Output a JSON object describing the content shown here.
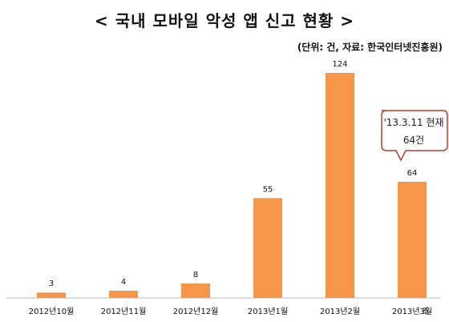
{
  "chart_data": {
    "type": "bar",
    "title": "< 국내 모바일 악성 앱 신고 현황 >",
    "subtitle": "(단위: 건, 자료: 한국인터넷진흥원)",
    "categories": [
      "2012년10월",
      "2012년11월",
      "2012년12월",
      "2013년1월",
      "2013년2월",
      "2013년3월"
    ],
    "values": [
      3,
      4,
      8,
      55,
      124,
      64
    ],
    "data_labels": [
      "3",
      "4",
      "8",
      "55",
      "124",
      "64"
    ],
    "ylim": [
      0,
      124
    ],
    "grid": false,
    "bar_color": "#f79646",
    "annotation": {
      "line1": "'13.3.11 현재",
      "line2": "64건",
      "border_color": "#c0392b"
    },
    "extra_label": "조"
  }
}
